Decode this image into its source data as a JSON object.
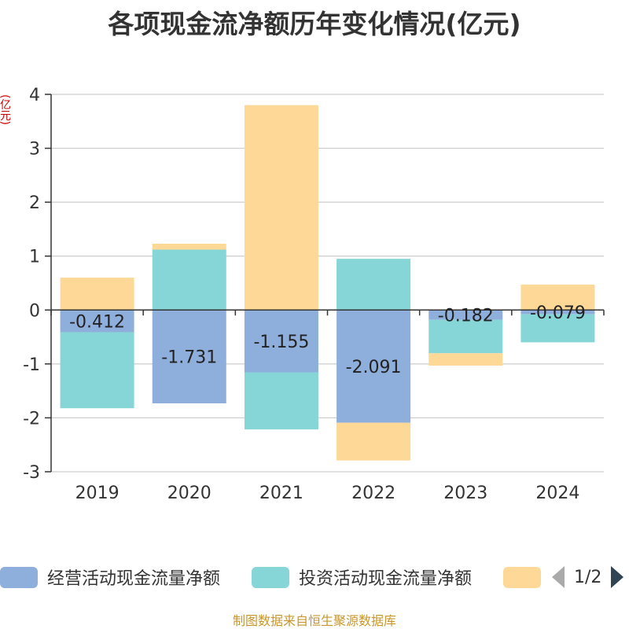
{
  "title": "各项现金流净额历年变化情况(亿元)",
  "unit_label": "(亿元)",
  "legend": {
    "items": [
      {
        "label": "经营活动现金流量净额",
        "color": "#8eaedb"
      },
      {
        "label": "投资活动现金流量净额",
        "color": "#86d6d8"
      },
      {
        "label": "",
        "color": "#fdd896"
      }
    ],
    "page": "1/2"
  },
  "footer": "制图数据来自恒生聚源数据库",
  "chart_data": {
    "type": "bar",
    "stacked": true,
    "categories": [
      "2019",
      "2020",
      "2021",
      "2022",
      "2023",
      "2024"
    ],
    "series": [
      {
        "name": "经营活动现金流量净额",
        "color": "#8eaedb",
        "values": [
          -0.412,
          -1.731,
          -1.155,
          -2.091,
          -0.182,
          -0.079
        ],
        "labels": [
          "-0.412",
          "-1.731",
          "-1.155",
          "-2.091",
          "-0.182",
          "-0.079"
        ]
      },
      {
        "name": "投资活动现金流量净额",
        "color": "#86d6d8",
        "values": [
          -1.41,
          1.12,
          -1.06,
          0.95,
          -0.62,
          -0.52
        ]
      },
      {
        "name": "",
        "color": "#fdd896",
        "values": [
          0.6,
          0.11,
          3.8,
          -0.7,
          -0.23,
          0.47
        ]
      }
    ],
    "ylim": [
      -3,
      4
    ],
    "yticks": [
      -3,
      -2,
      -1,
      0,
      1,
      2,
      3,
      4
    ],
    "grid": true
  }
}
